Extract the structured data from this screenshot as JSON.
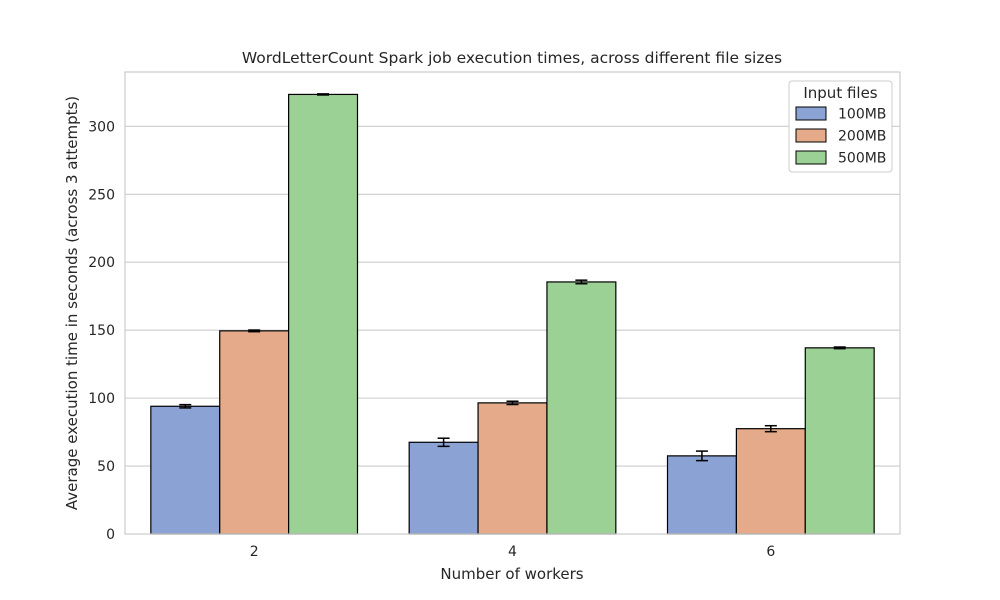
{
  "chart_data": {
    "type": "bar",
    "title": "WordLetterCount Spark job execution times, across different file sizes",
    "xlabel": "Number of workers",
    "ylabel": "Average execution time in seconds (across 3 attempts)",
    "categories": [
      "2",
      "4",
      "6"
    ],
    "ylim": [
      0,
      340
    ],
    "yticks": [
      0,
      50,
      100,
      150,
      200,
      250,
      300
    ],
    "grid": true,
    "legend": {
      "title": "Input files",
      "placement": "top-right"
    },
    "series": [
      {
        "name": "100MB",
        "color": "#8ba3d4",
        "values": [
          94,
          67.5,
          57.5
        ],
        "errors": [
          1.2,
          3.0,
          3.5
        ]
      },
      {
        "name": "200MB",
        "color": "#e4aa89",
        "values": [
          149.5,
          96.5,
          77.5
        ],
        "errors": [
          0.6,
          1.2,
          2.2
        ]
      },
      {
        "name": "500MB",
        "color": "#9cd195",
        "values": [
          323.5,
          185.5,
          137
        ],
        "errors": [
          0.4,
          1.3,
          0.6
        ]
      }
    ]
  }
}
